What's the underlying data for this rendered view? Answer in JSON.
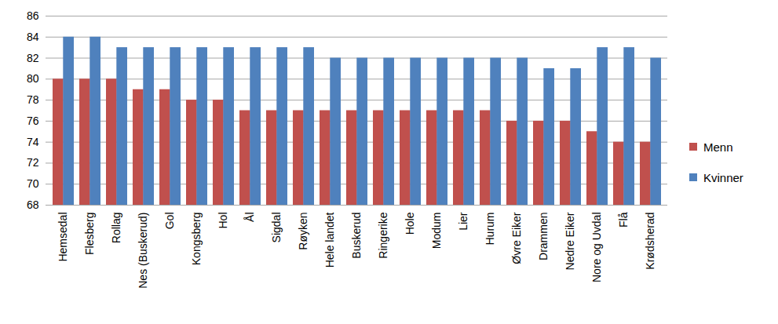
{
  "chart_data": {
    "type": "bar",
    "categories": [
      "Hemsedal",
      "Flesberg",
      "Rollag",
      "Nes (Buskerud)",
      "Gol",
      "Kongsberg",
      "Hol",
      "Ål",
      "Sigdal",
      "Røyken",
      "Hele landet",
      "Buskerud",
      "Ringerike",
      "Hole",
      "Modum",
      "Lier",
      "Hurum",
      "Øvre Eiker",
      "Drammen",
      "Nedre Eiker",
      "Nore og Uvdal",
      "Flå",
      "Krødsherad"
    ],
    "series": [
      {
        "name": "Menn",
        "color": "#c0504d",
        "values": [
          80,
          80,
          80,
          79,
          79,
          78,
          78,
          77,
          77,
          77,
          77,
          77,
          77,
          77,
          77,
          77,
          77,
          76,
          76,
          76,
          75,
          74,
          74
        ]
      },
      {
        "name": "Kvinner",
        "color": "#4f81bd",
        "values": [
          84,
          84,
          83,
          83,
          83,
          83,
          83,
          83,
          83,
          83,
          82,
          82,
          82,
          82,
          82,
          82,
          82,
          82,
          81,
          81,
          83,
          83,
          82
        ]
      }
    ],
    "ylim": [
      68,
      86
    ],
    "yticks": [
      68,
      70,
      72,
      74,
      76,
      78,
      80,
      82,
      84,
      86
    ],
    "grid": true,
    "legend": "right"
  }
}
